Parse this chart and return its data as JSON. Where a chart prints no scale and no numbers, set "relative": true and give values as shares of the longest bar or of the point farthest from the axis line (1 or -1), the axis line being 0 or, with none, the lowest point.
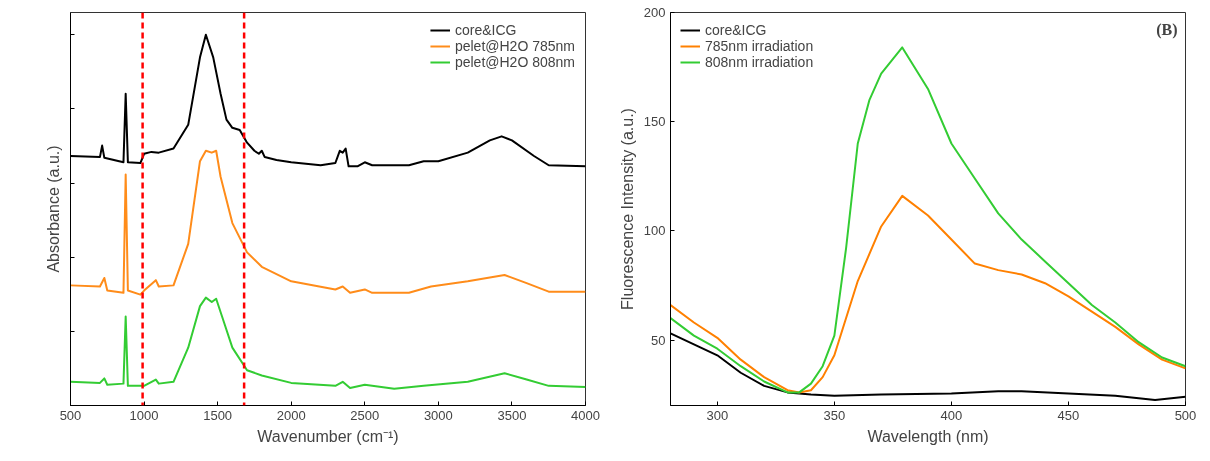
{
  "chart_data": [
    {
      "type": "line",
      "xlabel": "Wavenumber (cm⁻¹)",
      "ylabel": "Absorbance (a.u.)",
      "relative": true,
      "xlim": [
        500,
        4000
      ],
      "xticks": [
        500,
        1000,
        1500,
        2000,
        2500,
        3000,
        3500,
        4000
      ],
      "tick_labels": "x",
      "legend": "top right",
      "grid": false,
      "ref_lines": [
        {
          "axis": "x",
          "value": 990,
          "color": "#ff0000",
          "line_style": "dashed"
        },
        {
          "axis": "x",
          "value": 1680,
          "color": "#ff0000",
          "line_style": "dashed"
        }
      ],
      "series": [
        {
          "name": "core&ICG",
          "color": "#000000",
          "x": [
            500,
            700,
            715,
            730,
            860,
            875,
            890,
            975,
            1000,
            1050,
            1100,
            1200,
            1300,
            1380,
            1420,
            1470,
            1520,
            1560,
            1600,
            1650,
            1700,
            1750,
            1780,
            1800,
            1820,
            1900,
            2000,
            2200,
            2300,
            2330,
            2350,
            2370,
            2390,
            2450,
            2500,
            2550,
            2800,
            2900,
            3000,
            3200,
            3350,
            3430,
            3500,
            3650,
            3750,
            4000
          ],
          "values": [
            0.673,
            0.67,
            0.701,
            0.668,
            0.656,
            0.841,
            0.656,
            0.654,
            0.679,
            0.684,
            0.682,
            0.693,
            0.757,
            0.939,
            1,
            0.939,
            0.841,
            0.771,
            0.749,
            0.743,
            0.709,
            0.687,
            0.679,
            0.687,
            0.67,
            0.662,
            0.656,
            0.648,
            0.654,
            0.687,
            0.682,
            0.693,
            0.645,
            0.645,
            0.656,
            0.648,
            0.648,
            0.659,
            0.659,
            0.682,
            0.715,
            0.726,
            0.715,
            0.673,
            0.648,
            0.645
          ]
        },
        {
          "name": "pelet@H2O 785nm",
          "color": "#ff8c1a",
          "x": [
            500,
            700,
            730,
            750,
            860,
            875,
            890,
            975,
            1000,
            1080,
            1100,
            1200,
            1300,
            1380,
            1420,
            1460,
            1490,
            1520,
            1600,
            1700,
            1800,
            2000,
            2300,
            2350,
            2400,
            2500,
            2550,
            2800,
            2950,
            3200,
            3450,
            3600,
            3750,
            4000
          ],
          "values": [
            0.324,
            0.321,
            0.344,
            0.31,
            0.304,
            0.623,
            0.31,
            0.299,
            0.31,
            0.338,
            0.321,
            0.324,
            0.436,
            0.659,
            0.687,
            0.682,
            0.687,
            0.617,
            0.492,
            0.413,
            0.374,
            0.335,
            0.313,
            0.321,
            0.304,
            0.313,
            0.304,
            0.304,
            0.321,
            0.335,
            0.352,
            0.33,
            0.307,
            0.307
          ]
        },
        {
          "name": "pelet@H2O 808nm",
          "color": "#33cc33",
          "x": [
            500,
            700,
            730,
            750,
            860,
            875,
            890,
            1000,
            1080,
            1100,
            1200,
            1300,
            1380,
            1420,
            1460,
            1490,
            1530,
            1600,
            1700,
            1800,
            2000,
            2300,
            2350,
            2400,
            2500,
            2700,
            2900,
            3200,
            3450,
            3600,
            3750,
            4000
          ],
          "values": [
            0.064,
            0.061,
            0.073,
            0.056,
            0.059,
            0.24,
            0.053,
            0.053,
            0.07,
            0.059,
            0.064,
            0.156,
            0.268,
            0.291,
            0.279,
            0.288,
            0.24,
            0.156,
            0.095,
            0.081,
            0.061,
            0.053,
            0.064,
            0.047,
            0.056,
            0.045,
            0.053,
            0.064,
            0.087,
            0.07,
            0.053,
            0.05
          ]
        }
      ]
    },
    {
      "type": "line",
      "xlabel": "Wavelength (nm)",
      "ylabel": "Fluorescence Intensity (a.u.)",
      "annotations": [
        "(B)"
      ],
      "xlim": [
        280,
        500
      ],
      "xticks": [
        300,
        350,
        400,
        450,
        500
      ],
      "ylim": [
        20,
        200
      ],
      "yticks": [
        50,
        100,
        150,
        200
      ],
      "legend": "top left",
      "grid": false,
      "series": [
        {
          "name": "core&ICG",
          "color": "#000000",
          "x": [
            280,
            290,
            300,
            310,
            320,
            330,
            340,
            350,
            370,
            400,
            420,
            430,
            450,
            470,
            487,
            500
          ],
          "values": [
            53,
            48,
            43,
            35,
            29,
            26,
            25,
            24.5,
            25,
            25.5,
            26.5,
            26.5,
            25.5,
            24.5,
            22.5,
            24
          ]
        },
        {
          "name": "785nm irradiation",
          "color": "#ff8000",
          "x": [
            280,
            290,
            300,
            310,
            320,
            330,
            335,
            340,
            345,
            350,
            360,
            370,
            379,
            390,
            400,
            410,
            420,
            430,
            440,
            450,
            460,
            470,
            480,
            490,
            500
          ],
          "values": [
            66,
            58,
            51,
            41,
            33,
            27,
            26,
            27,
            33,
            43,
            77,
            102,
            116,
            107,
            96,
            85,
            82,
            80,
            76,
            70,
            63,
            56,
            48,
            41,
            37
          ]
        },
        {
          "name": "808nm irradiation",
          "color": "#33cc33",
          "x": [
            280,
            290,
            300,
            310,
            320,
            330,
            335,
            340,
            345,
            350,
            355,
            360,
            365,
            370,
            379,
            390,
            400,
            410,
            420,
            430,
            440,
            450,
            460,
            470,
            480,
            490,
            500
          ],
          "values": [
            60,
            52,
            46,
            38,
            31,
            26,
            26,
            30,
            38,
            52,
            92,
            140,
            160,
            172,
            184,
            165,
            140,
            124,
            108,
            96,
            86,
            76,
            66,
            58,
            49,
            42,
            38
          ]
        }
      ]
    }
  ]
}
